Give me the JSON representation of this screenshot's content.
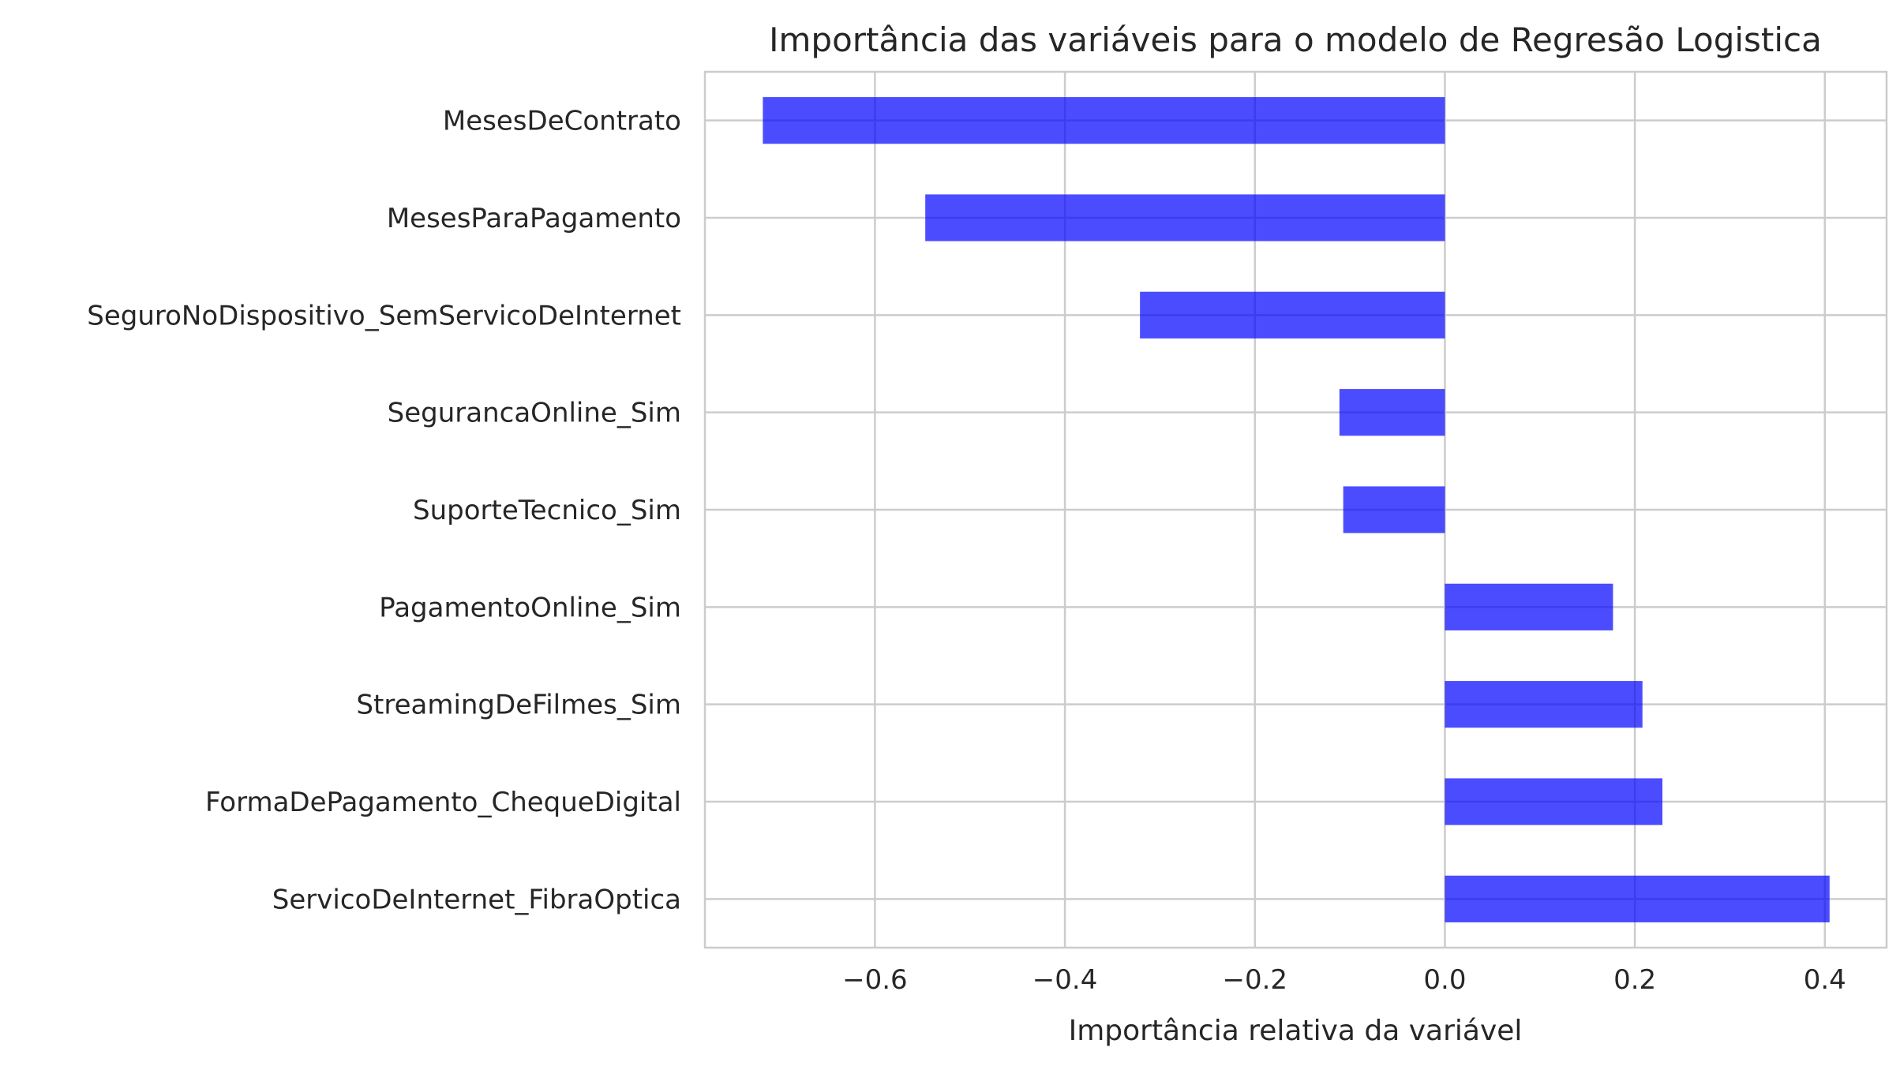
{
  "chart_data": {
    "type": "bar",
    "orientation": "horizontal",
    "title": "Importância das variáveis para o modelo de Regresão Logistica",
    "xlabel": "Importância relativa da variável",
    "ylabel": "",
    "categories": [
      "MesesDeContrato",
      "MesesParaPagamento",
      "SeguroNoDispositivo_SemServicoDeInternet",
      "SegurancaOnline_Sim",
      "SuporteTecnico_Sim",
      "PagamentoOnline_Sim",
      "StreamingDeFilmes_Sim",
      "FormaDePagamento_ChequeDigital",
      "ServicoDeInternet_FibraOptica"
    ],
    "values": [
      -0.718,
      -0.547,
      -0.321,
      -0.111,
      -0.107,
      0.177,
      0.208,
      0.229,
      0.405
    ],
    "xlim": [
      -0.779,
      0.465
    ],
    "xticks": [
      -0.6,
      -0.4,
      -0.2,
      0.0,
      0.2,
      0.4
    ],
    "xtick_labels": [
      "−0.6",
      "−0.4",
      "−0.2",
      "0.0",
      "0.2",
      "0.4"
    ],
    "grid": true,
    "bar_color": "#0000ff",
    "bar_opacity": 0.7
  }
}
